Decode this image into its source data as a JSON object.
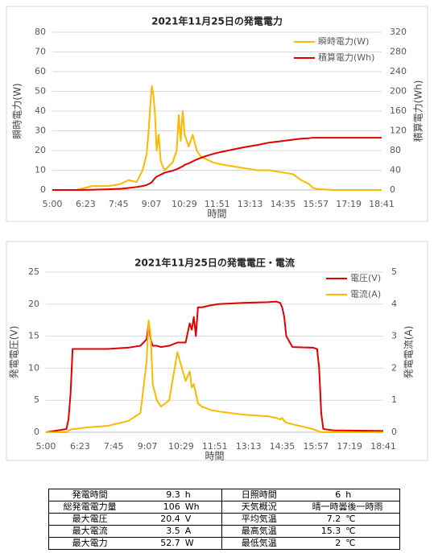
{
  "chart_data": [
    {
      "type": "line",
      "title": "2021年11月25日の発電電力",
      "xlabel": "時間",
      "ylabel": "瞬時電力(W)",
      "y2label": "積算電力(Wh)",
      "x": [
        300,
        360,
        400,
        440,
        470,
        490,
        510,
        525,
        535,
        540,
        545,
        548,
        552,
        556,
        560,
        565,
        570,
        575,
        580,
        590,
        600,
        610,
        615,
        620,
        625,
        630,
        640,
        650,
        660,
        670,
        680,
        700,
        720,
        750,
        780,
        810,
        840,
        870,
        900,
        920,
        940,
        950,
        960,
        1000,
        1121
      ],
      "series": [
        {
          "name": "瞬時電力(W)",
          "color": "#ffb800",
          "values": [
            0,
            0,
            2,
            2,
            3,
            5,
            4,
            10,
            18,
            30,
            45,
            52.7,
            48,
            38,
            20,
            28,
            15,
            12,
            10,
            12,
            14,
            20,
            38,
            25,
            40,
            28,
            22,
            28,
            20,
            17,
            16,
            14,
            13,
            12,
            11,
            10,
            10,
            9,
            8,
            5,
            3,
            1,
            0.5,
            0,
            0
          ]
        },
        {
          "name": "積算電力(Wh)",
          "color": "#e00000",
          "axis": "y2",
          "values": [
            0,
            0,
            0.5,
            1.5,
            2.5,
            4,
            6,
            8,
            10,
            12,
            14,
            16,
            20,
            24,
            27,
            29,
            31,
            33,
            35,
            37,
            39,
            42,
            44,
            46,
            48,
            51,
            54,
            58,
            62,
            65,
            68,
            73,
            77,
            82,
            87,
            91,
            96,
            99,
            102,
            104,
            105,
            106,
            106,
            106,
            106
          ]
        }
      ],
      "xlim": [
        300,
        1121
      ],
      "xticks": [
        {
          "value": 300,
          "label": "5:00"
        },
        {
          "value": 383,
          "label": "6:23"
        },
        {
          "value": 465,
          "label": "7:45"
        },
        {
          "value": 547,
          "label": "9:07"
        },
        {
          "value": 629,
          "label": "10:29"
        },
        {
          "value": 711,
          "label": "11:51"
        },
        {
          "value": 793,
          "label": "13:13"
        },
        {
          "value": 875,
          "label": "14:35"
        },
        {
          "value": 957,
          "label": "15:57"
        },
        {
          "value": 1039,
          "label": "17:19"
        },
        {
          "value": 1121,
          "label": "18:41"
        }
      ],
      "ylim": [
        0,
        80
      ],
      "yticks": [
        0,
        10,
        20,
        30,
        40,
        50,
        60,
        70,
        80
      ],
      "y2lim": [
        0,
        320
      ],
      "y2ticks": [
        0,
        40,
        80,
        120,
        160,
        200,
        240,
        280,
        320
      ],
      "grid": true,
      "legend": "upper right"
    },
    {
      "type": "line",
      "title": "2021年11月25日の発電電圧・電流",
      "xlabel": "時間",
      "ylabel": "発電電圧(V)",
      "y2label": "発電電流(A)",
      "x": [
        300,
        350,
        355,
        360,
        365,
        370,
        400,
        450,
        500,
        530,
        545,
        550,
        555,
        560,
        570,
        580,
        600,
        620,
        640,
        650,
        655,
        660,
        665,
        670,
        680,
        700,
        720,
        780,
        840,
        860,
        870,
        875,
        880,
        885,
        900,
        950,
        960,
        965,
        970,
        975,
        1000,
        1121
      ],
      "series": [
        {
          "name": "電圧(V)",
          "color": "#e00000",
          "values": [
            0,
            0.5,
            2,
            6,
            13,
            13,
            13,
            13,
            13.2,
            13.5,
            14.5,
            17,
            14.5,
            13.5,
            13.5,
            13.3,
            13.5,
            14,
            14,
            17,
            16,
            18,
            15,
            19.5,
            19.5,
            19.8,
            20,
            20.2,
            20.3,
            20.4,
            20.2,
            19.5,
            18,
            15,
            13.3,
            13.2,
            13,
            10,
            3,
            0.5,
            0.3,
            0.2
          ]
        },
        {
          "name": "電流(A)",
          "color": "#ffb800",
          "axis": "y2",
          "values": [
            0,
            0,
            0.05,
            0.08,
            0.1,
            0.1,
            0.15,
            0.2,
            0.35,
            0.6,
            2.2,
            3.5,
            3,
            1.5,
            1,
            0.8,
            1,
            2.5,
            1.6,
            1.9,
            1.4,
            1.5,
            1.2,
            0.9,
            0.8,
            0.7,
            0.65,
            0.55,
            0.5,
            0.45,
            0.4,
            0.45,
            0.35,
            0.3,
            0.25,
            0.1,
            0.05,
            0.02,
            0,
            0,
            0,
            0
          ]
        }
      ],
      "xlim": [
        300,
        1121
      ],
      "xticks": [
        {
          "value": 300,
          "label": "5:00"
        },
        {
          "value": 383,
          "label": "6:23"
        },
        {
          "value": 465,
          "label": "7:45"
        },
        {
          "value": 547,
          "label": "9:07"
        },
        {
          "value": 629,
          "label": "10:29"
        },
        {
          "value": 711,
          "label": "11:51"
        },
        {
          "value": 793,
          "label": "13:13"
        },
        {
          "value": 875,
          "label": "14:35"
        },
        {
          "value": 957,
          "label": "15:57"
        },
        {
          "value": 1039,
          "label": "17:19"
        },
        {
          "value": 1121,
          "label": "18:41"
        }
      ],
      "ylim": [
        0,
        25
      ],
      "yticks": [
        0,
        5,
        10,
        15,
        20,
        25
      ],
      "y2lim": [
        0,
        5
      ],
      "y2ticks": [
        0,
        1,
        2,
        3,
        4,
        5
      ],
      "grid": true,
      "legend": "upper right"
    }
  ],
  "table": {
    "left_rows": [
      [
        "発電時間",
        "9.3",
        "h"
      ],
      [
        "総発電電力量",
        "106",
        "Wh"
      ],
      [
        "最大電圧",
        "20.4",
        "V"
      ],
      [
        "最大電流",
        "3.5",
        "A"
      ],
      [
        "最大電力",
        "52.7",
        "W"
      ]
    ],
    "right_rows": [
      [
        "日照時間",
        "6",
        "h"
      ],
      [
        "天気概況",
        "晴一時曇後一時雨"
      ],
      [
        "平均気温",
        "7.2",
        "℃"
      ],
      [
        "最高気温",
        "15.3",
        "℃"
      ],
      [
        "最低気温",
        "2",
        "℃"
      ]
    ]
  }
}
